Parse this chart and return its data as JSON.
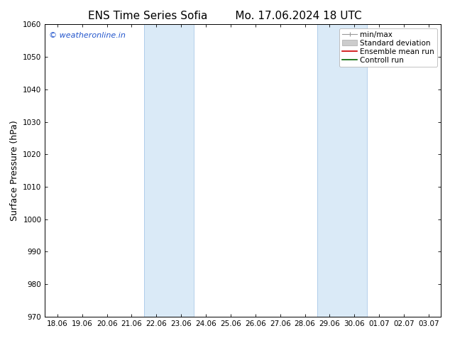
{
  "title_left": "ENS Time Series Sofia",
  "title_right": "Mo. 17.06.2024 18 UTC",
  "ylabel": "Surface Pressure (hPa)",
  "ylim": [
    970,
    1060
  ],
  "yticks": [
    970,
    980,
    990,
    1000,
    1010,
    1020,
    1030,
    1040,
    1050,
    1060
  ],
  "x_labels": [
    "18.06",
    "19.06",
    "20.06",
    "21.06",
    "22.06",
    "23.06",
    "24.06",
    "25.06",
    "26.06",
    "27.06",
    "28.06",
    "29.06",
    "30.06",
    "01.07",
    "02.07",
    "03.07"
  ],
  "shaded_bands": [
    {
      "xstart": 4,
      "xend": 6
    },
    {
      "xstart": 11,
      "xend": 13
    }
  ],
  "shade_color": "#daeaf7",
  "band_edge_color": "#a8c8e8",
  "background_color": "#ffffff",
  "watermark": "© weatheronline.in",
  "watermark_color": "#2255cc",
  "legend_items": [
    {
      "label": "min/max",
      "type": "minmax"
    },
    {
      "label": "Standard deviation",
      "type": "band"
    },
    {
      "label": "Ensemble mean run",
      "color": "#cc0000",
      "type": "line"
    },
    {
      "label": "Controll run",
      "color": "#006600",
      "type": "line"
    }
  ],
  "title_fontsize": 11,
  "tick_fontsize": 7.5,
  "ylabel_fontsize": 9,
  "legend_fontsize": 7.5
}
